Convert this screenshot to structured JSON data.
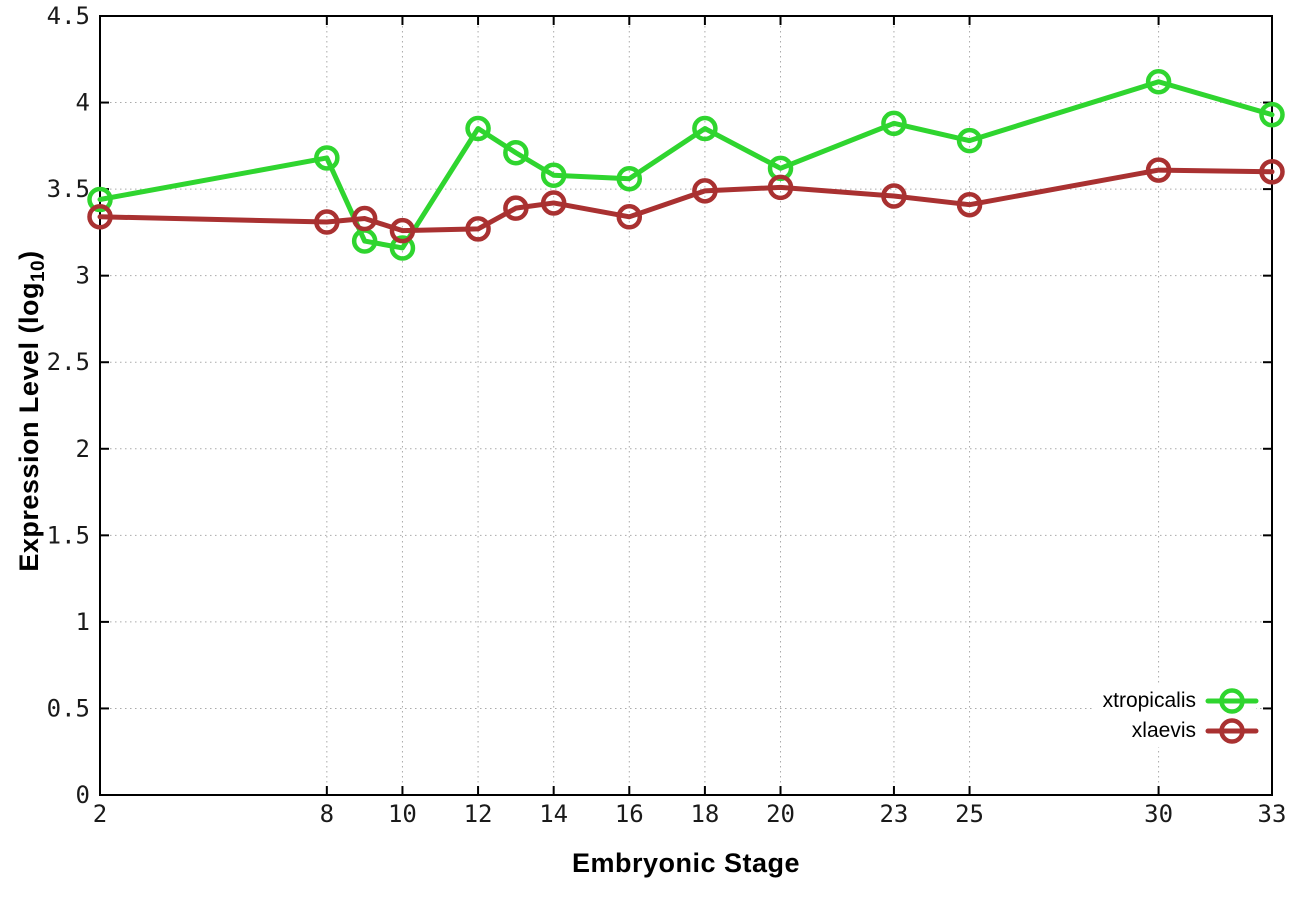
{
  "chart_data": {
    "type": "line",
    "title": "",
    "xlabel": "Embryonic Stage",
    "ylabel": "Expression Level (log10)",
    "ylabel_parts": {
      "main": "Expression Level (log",
      "sub": "10",
      "end": ")"
    },
    "x": [
      2,
      8,
      9,
      10,
      12,
      13,
      14,
      16,
      18,
      20,
      23,
      25,
      30,
      33
    ],
    "xticks": [
      2,
      8,
      10,
      12,
      14,
      16,
      18,
      20,
      23,
      25,
      30,
      33
    ],
    "yticks": [
      0,
      0.5,
      1,
      1.5,
      2,
      2.5,
      3,
      3.5,
      4,
      4.5
    ],
    "xlim": [
      2,
      33
    ],
    "ylim": [
      0,
      4.5
    ],
    "grid": true,
    "legend_position": "bottom-right",
    "series": [
      {
        "name": "xtropicalis",
        "color": "#2fd52f",
        "values": [
          3.44,
          3.68,
          3.2,
          3.16,
          3.85,
          3.71,
          3.58,
          3.56,
          3.85,
          3.62,
          3.88,
          3.78,
          4.12,
          3.93
        ]
      },
      {
        "name": "xlaevis",
        "color": "#a93131",
        "values": [
          3.34,
          3.31,
          3.33,
          3.26,
          3.27,
          3.39,
          3.42,
          3.34,
          3.49,
          3.51,
          3.46,
          3.41,
          3.61,
          3.6
        ]
      }
    ],
    "style": {
      "grid_color": "#aaaaaa",
      "border_color": "#000000",
      "tick_label_color": "#1a1a1a"
    }
  }
}
